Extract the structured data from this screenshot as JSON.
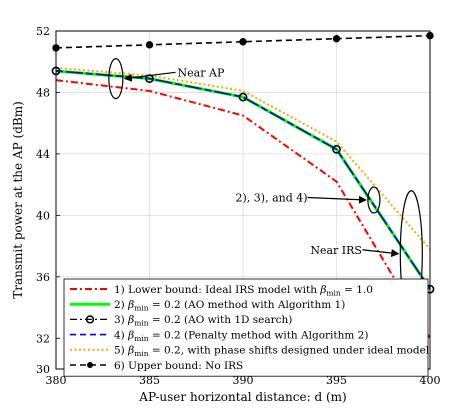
{
  "chart_data": {
    "type": "line",
    "xlabel": "AP-user horizontal distance: d (m)",
    "ylabel": "Transmit power at the AP (dBm)",
    "xlim": [
      380,
      400
    ],
    "ylim": [
      30,
      52
    ],
    "xticks": [
      "380",
      "385",
      "390",
      "395",
      "400"
    ],
    "yticks": [
      "30",
      "32",
      "36",
      "40",
      "44",
      "48",
      "52"
    ],
    "grid": true,
    "legend_placement": "bottom-right",
    "x": [
      380,
      385,
      390,
      395,
      400
    ],
    "series": [
      {
        "key": "s1",
        "name": "1) Lower bound: Ideal IRS model with β_min = 1.0",
        "values": [
          48.8,
          48.1,
          46.5,
          42.2,
          32.0
        ],
        "color": "#ff0000",
        "style": "dashdot",
        "marker": "none"
      },
      {
        "key": "s2",
        "name": "2) β_min = 0.2 (AO method with Algorithm 1)",
        "values": [
          49.4,
          48.9,
          47.7,
          44.3,
          35.2
        ],
        "color": "#00ff00",
        "style": "solid",
        "marker": "none"
      },
      {
        "key": "s3",
        "name": "3) β_min = 0.2 (AO with 1D search)",
        "values": [
          49.4,
          48.9,
          47.7,
          44.3,
          35.2
        ],
        "color": "#000000",
        "style": "dashdot",
        "marker": "circle"
      },
      {
        "key": "s4",
        "name": "4) β_min = 0.2 (Penalty method with Algorithm 2)",
        "values": [
          49.4,
          48.9,
          47.7,
          44.3,
          35.2
        ],
        "color": "#0000ff",
        "style": "dashed",
        "marker": "none"
      },
      {
        "key": "s5",
        "name": "5) β_min = 0.2, with phase shifts designed under ideal model",
        "values": [
          49.6,
          49.1,
          48.1,
          44.8,
          37.8
        ],
        "color": "#ffa500",
        "style": "dotted",
        "marker": "none"
      },
      {
        "key": "s6",
        "name": "6) Upper bound: No IRS",
        "values": [
          50.9,
          51.1,
          51.3,
          51.5,
          51.7
        ],
        "color": "#000000",
        "style": "dashed",
        "marker": "dot"
      }
    ],
    "annotations": [
      {
        "text": "Near AP",
        "ellipse_x": 383.2,
        "ellipse_y": 48.9,
        "label_x": 386.5,
        "label_y": 49.7
      },
      {
        "text": "2), 3), and 4)",
        "ellipse_x": 397.0,
        "ellipse_y": 41.0,
        "label_x": 389.6,
        "label_y": 40.9
      },
      {
        "text": "Near IRS",
        "ellipse_x": 399.0,
        "ellipse_y": 37.5,
        "label_x": 393.6,
        "label_y": 37.5
      }
    ],
    "legend_entries": [
      {
        "text": "1) Lower bound: Ideal IRS model with ",
        "beta": "β",
        "sub": "min",
        "tail": " = 1.0"
      },
      {
        "text": "2) ",
        "beta": "β",
        "sub": "min",
        "tail": " = 0.2 (AO method with Algorithm 1)"
      },
      {
        "text": "3) ",
        "beta": "β",
        "sub": "min",
        "tail": " = 0.2 (AO with 1D search)"
      },
      {
        "text": "4) ",
        "beta": "β",
        "sub": "min",
        "tail": " = 0.2 (Penalty method with Algorithm 2)"
      },
      {
        "text": "5) ",
        "beta": "β",
        "sub": "min",
        "tail": " = 0.2, with phase shifts designed under ideal model"
      },
      {
        "text": "6) Upper bound: No IRS",
        "beta": "",
        "sub": "",
        "tail": ""
      }
    ]
  }
}
